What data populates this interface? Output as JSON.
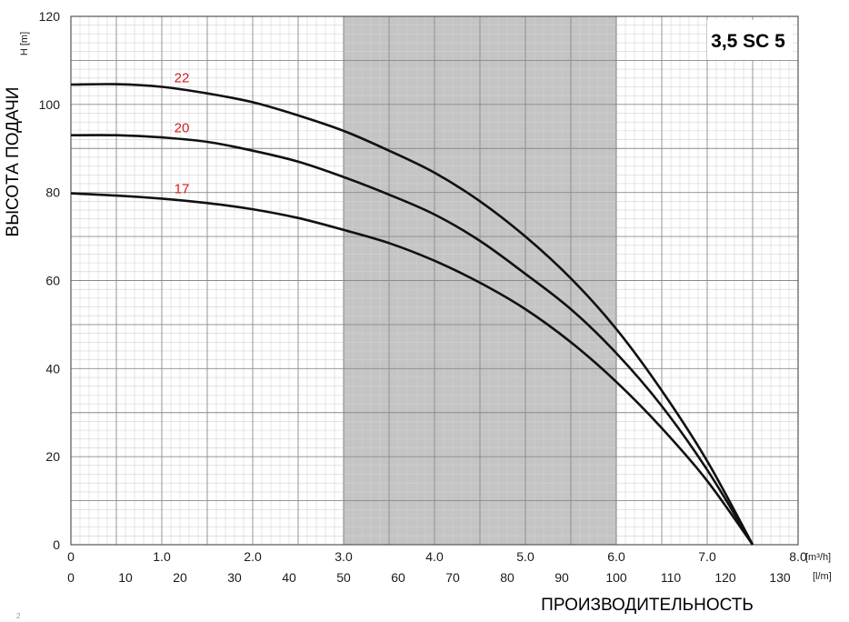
{
  "chart_data": {
    "type": "line",
    "title": "3,5 SC 5",
    "ylabel": "ВЫСОТА ПОДАЧИ",
    "y_unit": "H [m]",
    "xlabel": "ПРОИЗВОДИТЕЛЬНОСТЬ",
    "x_unit_primary": "[m³/h]",
    "x_unit_secondary": "[l/m]",
    "xlim": [
      0,
      8.0
    ],
    "ylim": [
      0,
      120
    ],
    "x_ticks": [
      "0",
      "1.0",
      "2.0",
      "3.0",
      "4.0",
      "5.0",
      "6.0",
      "7.0",
      "8.0"
    ],
    "x2_ticks": [
      "0",
      "10",
      "20",
      "30",
      "40",
      "50",
      "60",
      "70",
      "80",
      "90",
      "100",
      "110",
      "120",
      "130"
    ],
    "y_ticks": [
      "0",
      "20",
      "40",
      "60",
      "80",
      "100",
      "120"
    ],
    "grid": true,
    "highlight_range_x": [
      3.0,
      6.0
    ],
    "series": [
      {
        "name": "22",
        "x": [
          0,
          0.5,
          1.0,
          1.5,
          2.0,
          2.5,
          3.0,
          3.5,
          4.0,
          4.5,
          5.0,
          5.5,
          6.0,
          6.5,
          7.0,
          7.5
        ],
        "y": [
          104.5,
          104.6,
          104.0,
          102.5,
          100.5,
          97.5,
          94.0,
          89.5,
          84.5,
          78.0,
          70.0,
          60.5,
          49.0,
          35.0,
          19.0,
          0
        ]
      },
      {
        "name": "20",
        "x": [
          0,
          0.5,
          1.0,
          1.5,
          2.0,
          2.5,
          3.0,
          3.5,
          4.0,
          4.5,
          5.0,
          5.5,
          6.0,
          6.5,
          7.0,
          7.5
        ],
        "y": [
          93.0,
          93.0,
          92.5,
          91.5,
          89.5,
          87.0,
          83.5,
          79.5,
          75.0,
          69.0,
          61.5,
          53.5,
          43.5,
          31.5,
          17.0,
          0
        ]
      },
      {
        "name": "17",
        "x": [
          0,
          0.5,
          1.0,
          1.5,
          2.0,
          2.5,
          3.0,
          3.5,
          4.0,
          4.5,
          5.0,
          5.5,
          6.0,
          6.5,
          7.0,
          7.5
        ],
        "y": [
          79.8,
          79.3,
          78.6,
          77.6,
          76.2,
          74.2,
          71.5,
          68.5,
          64.5,
          59.5,
          53.5,
          46.0,
          37.0,
          26.5,
          14.5,
          0
        ]
      }
    ]
  },
  "corner_mark": "2"
}
